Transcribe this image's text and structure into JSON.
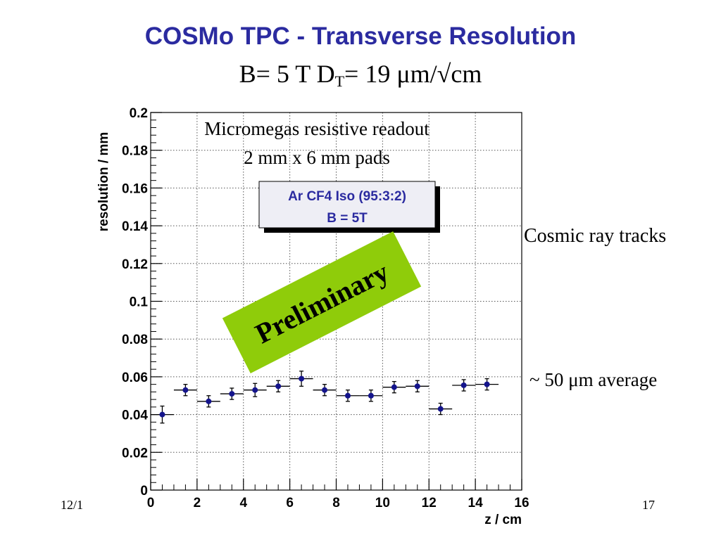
{
  "slide": {
    "title": "COSMo TPC - Transverse Resolution",
    "subtitle_main": "B= 5 T D",
    "subtitle_sub": "T",
    "subtitle_rest": "= 19 μm/√cm",
    "note_right_top": "Cosmic ray tracks",
    "note_right_bottom": "~ 50 μm average",
    "footer_date": "12/1",
    "footer_page": "17"
  },
  "chart_data": {
    "type": "scatter",
    "xlabel": "z / cm",
    "ylabel": "resolution / mm",
    "xlim": [
      0,
      16
    ],
    "ylim": [
      0,
      0.2
    ],
    "x_ticks": [
      "0",
      "2",
      "4",
      "6",
      "8",
      "10",
      "12",
      "14",
      "16"
    ],
    "y_ticks": [
      "0",
      "0.02",
      "0.04",
      "0.06",
      "0.08",
      "0.1",
      "0.12",
      "0.14",
      "0.16",
      "0.18",
      "0.2"
    ],
    "grid": true,
    "annotations": [
      "Micromegas resistive readout",
      "2 mm x 6 mm pads"
    ],
    "legend_box": [
      "Ar CF4 Iso (95:3:2)",
      "B = 5T"
    ],
    "stamp": "Preliminary",
    "marker_color": "#14148c",
    "stamp_color": "#8fcc0a",
    "points": [
      {
        "x": 0.5,
        "y": 0.04,
        "xerr": 0.5,
        "yerr": 0.0045
      },
      {
        "x": 1.5,
        "y": 0.053,
        "xerr": 0.5,
        "yerr": 0.003
      },
      {
        "x": 2.5,
        "y": 0.047,
        "xerr": 0.5,
        "yerr": 0.003
      },
      {
        "x": 3.5,
        "y": 0.051,
        "xerr": 0.5,
        "yerr": 0.003
      },
      {
        "x": 4.5,
        "y": 0.053,
        "xerr": 0.5,
        "yerr": 0.0035
      },
      {
        "x": 5.5,
        "y": 0.055,
        "xerr": 0.5,
        "yerr": 0.003
      },
      {
        "x": 6.5,
        "y": 0.059,
        "xerr": 0.5,
        "yerr": 0.004
      },
      {
        "x": 7.5,
        "y": 0.053,
        "xerr": 0.5,
        "yerr": 0.003
      },
      {
        "x": 8.5,
        "y": 0.05,
        "xerr": 0.5,
        "yerr": 0.003
      },
      {
        "x": 9.5,
        "y": 0.05,
        "xerr": 0.5,
        "yerr": 0.003
      },
      {
        "x": 10.5,
        "y": 0.0545,
        "xerr": 0.5,
        "yerr": 0.003
      },
      {
        "x": 11.5,
        "y": 0.055,
        "xerr": 0.5,
        "yerr": 0.003
      },
      {
        "x": 12.5,
        "y": 0.043,
        "xerr": 0.5,
        "yerr": 0.003
      },
      {
        "x": 13.5,
        "y": 0.0555,
        "xerr": 0.5,
        "yerr": 0.003
      },
      {
        "x": 14.5,
        "y": 0.056,
        "xerr": 0.5,
        "yerr": 0.003
      }
    ]
  }
}
